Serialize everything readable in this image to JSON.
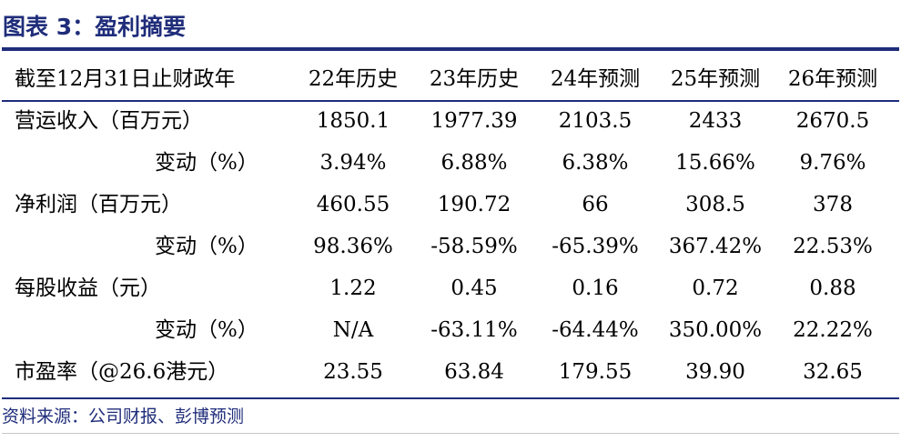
{
  "figure_title": "图表 3：盈利摘要",
  "table": {
    "headers": [
      "截至12月31日止财政年",
      "22年历史",
      "23年历史",
      "24年预测",
      "25年预测",
      "26年预测"
    ],
    "rows": [
      {
        "label": "营运收入（百万元）",
        "values": [
          "1850.1",
          "1977.39",
          "2103.5",
          "2433",
          "2670.5"
        ]
      },
      {
        "label": "变动（%）",
        "values": [
          "3.94%",
          "6.88%",
          "6.38%",
          "15.66%",
          "9.76%"
        ]
      },
      {
        "label": "净利润（百万元）",
        "values": [
          "460.55",
          "190.72",
          "66",
          "308.5",
          "378"
        ]
      },
      {
        "label": "变动（%）",
        "values": [
          "98.36%",
          "-58.59%",
          "-65.39%",
          "367.42%",
          "22.53%"
        ]
      },
      {
        "label": "每股收益（元）",
        "values": [
          "1.22",
          "0.45",
          "0.16",
          "0.72",
          "0.88"
        ]
      },
      {
        "label": "变动（%）",
        "values": [
          "N/A",
          "-63.11%",
          "-64.44%",
          "350.00%",
          "22.22%"
        ]
      },
      {
        "label": "市盈率（@26.6港元）",
        "values": [
          "23.55",
          "63.84",
          "179.55",
          "39.90",
          "32.65"
        ]
      }
    ]
  },
  "source": "资料来源：公司财报、彭博预测",
  "colors": {
    "title": "#1f2d7a",
    "rules": "#1f2d7a",
    "text": "#000000"
  }
}
